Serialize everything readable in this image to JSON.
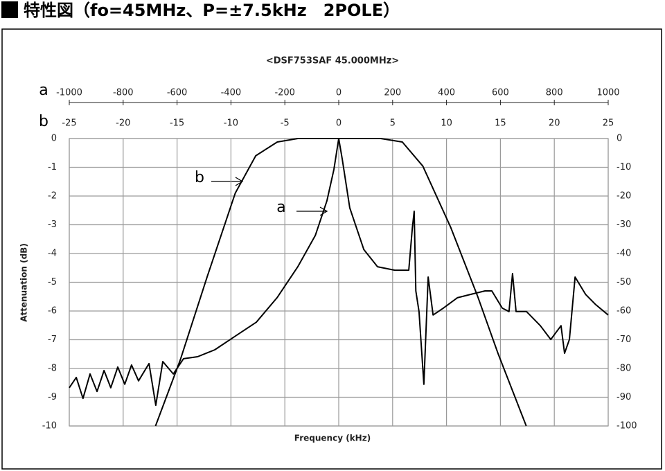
{
  "heading": "特性図（fo=45MHz、P=±7.5kHz　2POLE）",
  "chart_data": {
    "type": "line",
    "title": "<DSF753SAF 45.000MHz>",
    "x_label": "Frequency (kHz)",
    "y_label": "Attenuation (dB)",
    "xlim": [
      -1000,
      1000
    ],
    "xticks": [
      -1000,
      -800,
      -600,
      -400,
      -200,
      0,
      200,
      400,
      600,
      800,
      1000
    ],
    "x2lim": [
      -25,
      25
    ],
    "x2ticks": [
      -25,
      -20,
      -15,
      -10,
      -5,
      0,
      5,
      10,
      15,
      20,
      25
    ],
    "ylim": [
      -10,
      0
    ],
    "yticks": [
      0,
      -1,
      -2,
      -3,
      -4,
      -5,
      -6,
      -7,
      -8,
      -9,
      -10
    ],
    "y2lim": [
      -100,
      0
    ],
    "y2ticks": [
      0,
      -10,
      -20,
      -30,
      -40,
      -50,
      -60,
      -70,
      -80,
      -90,
      -100
    ],
    "grid": true,
    "series": [
      {
        "name": "a",
        "color": "#000000",
        "xaxis": "x",
        "axis": "y2",
        "x": [
          -1000,
          -974,
          -949,
          -923,
          -897,
          -871,
          -846,
          -820,
          -794,
          -769,
          -743,
          -704,
          -679,
          -653,
          -614,
          -576,
          -524,
          -460,
          -383,
          -306,
          -229,
          -152,
          -87,
          -44,
          -18,
          0,
          13,
          41,
          93,
          144,
          208,
          260,
          273,
          280,
          286,
          298,
          316,
          332,
          350,
          388,
          440,
          491,
          543,
          568,
          607,
          632,
          645,
          658,
          697,
          748,
          787,
          825,
          838,
          856,
          877,
          916,
          954,
          1000
        ],
        "values": [
          -86.7,
          -83.1,
          -90.4,
          -81.9,
          -88.0,
          -80.7,
          -86.7,
          -79.5,
          -85.5,
          -78.8,
          -84.3,
          -78.3,
          -92.8,
          -77.6,
          -81.9,
          -76.6,
          -75.9,
          -73.5,
          -68.7,
          -63.9,
          -55.4,
          -44.6,
          -33.7,
          -21.7,
          -10.8,
          0,
          -7.2,
          -24.1,
          -38.6,
          -44.6,
          -45.8,
          -45.8,
          -31.3,
          -25.3,
          -53.0,
          -60.2,
          -85.5,
          -48.2,
          -61.4,
          -59.0,
          -55.4,
          -54.2,
          -53.0,
          -53.0,
          -59.0,
          -60.2,
          -47.0,
          -60.2,
          -60.2,
          -65.1,
          -69.9,
          -65.1,
          -74.7,
          -69.9,
          -48.2,
          -54.2,
          -57.8,
          -61.4
        ]
      },
      {
        "name": "b",
        "color": "#000000",
        "xaxis": "x2",
        "axis": "y",
        "x": [
          -17.0,
          -14.7,
          -12.2,
          -9.6,
          -7.7,
          -5.7,
          -3.8,
          3.9,
          5.9,
          7.8,
          10.4,
          12.9,
          14.8,
          17.4
        ],
        "values": [
          -10,
          -7.7,
          -4.8,
          -1.9,
          -0.6,
          -0.12,
          0,
          0,
          -0.12,
          -0.96,
          -3.1,
          -5.5,
          -7.5,
          -10
        ]
      }
    ]
  }
}
